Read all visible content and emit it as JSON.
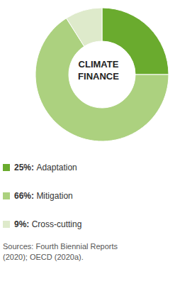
{
  "chart_data": {
    "type": "pie",
    "title": "CLIMATE FINANCE",
    "categories": [
      "Adaptation",
      "Mitigation",
      "Cross-cutting"
    ],
    "values": [
      25,
      66,
      9
    ],
    "value_labels": [
      "25%",
      "66%",
      "9%"
    ],
    "colors": [
      "#6aab2e",
      "#acd17f",
      "#deeacb"
    ],
    "legend": "bottom",
    "source": "Sources: Fourth Biennial Reports (2020); OECD (2020a)."
  }
}
